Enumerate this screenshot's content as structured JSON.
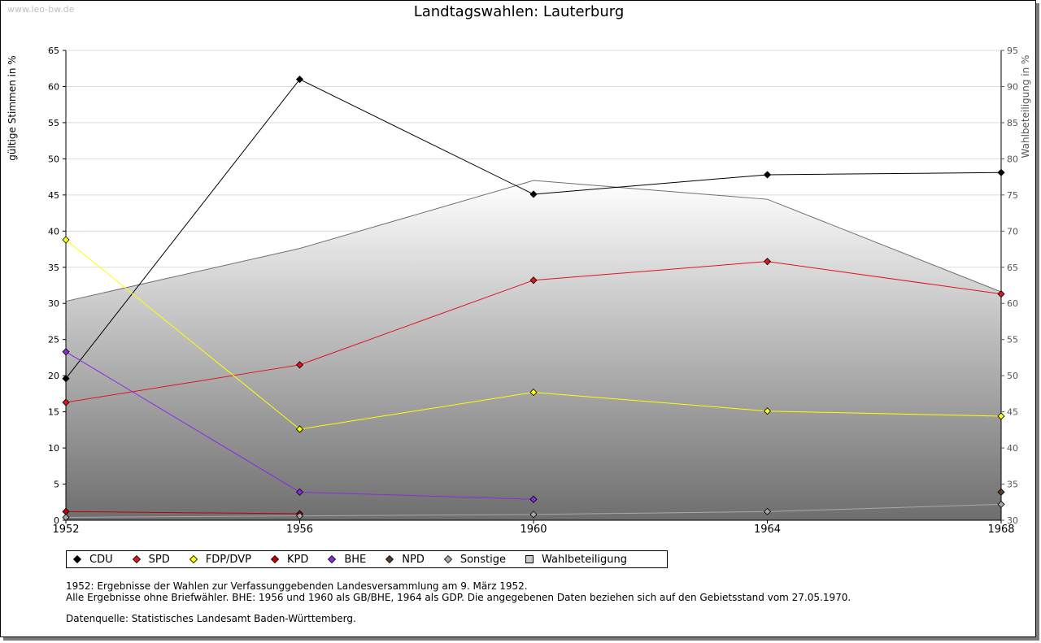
{
  "watermark": "www.leo-bw.de",
  "colors": {
    "CDU": "#000000",
    "SPD": "#e0141c",
    "FDP/DVP": "#ffff00",
    "KPD": "#c00000",
    "BHE": "#8a2be2",
    "NPD": "#5a3a2a",
    "Sonstige": "#a8a8a8",
    "Wahlbeteiligung": "#c8c8c8"
  },
  "chart_data": {
    "type": "line",
    "title": "Landtagswahlen: Lauterburg",
    "ylabel": "gültige Stimmen in %",
    "y2label": "Wahlbeteiligung in %",
    "ylim": [
      0,
      65
    ],
    "y2lim": [
      30,
      95
    ],
    "yticks": [
      0,
      5,
      10,
      15,
      20,
      25,
      30,
      35,
      40,
      45,
      50,
      55,
      60,
      65
    ],
    "y2ticks": [
      30,
      35,
      40,
      45,
      50,
      55,
      60,
      65,
      70,
      75,
      80,
      85,
      90,
      95
    ],
    "x": [
      1952,
      1956,
      1960,
      1964,
      1968
    ],
    "grid": true,
    "legend_position": "bottom",
    "series": [
      {
        "name": "CDU",
        "values": [
          19.6,
          61.0,
          45.1,
          47.8,
          48.1
        ]
      },
      {
        "name": "SPD",
        "values": [
          16.3,
          21.5,
          33.2,
          35.8,
          31.3
        ]
      },
      {
        "name": "FDP/DVP",
        "values": [
          38.8,
          12.6,
          17.7,
          15.1,
          14.4
        ]
      },
      {
        "name": "KPD",
        "values": [
          1.2,
          0.9,
          null,
          null,
          null
        ]
      },
      {
        "name": "BHE",
        "values": [
          23.3,
          3.9,
          2.9,
          null,
          null
        ]
      },
      {
        "name": "NPD",
        "values": [
          null,
          null,
          null,
          null,
          3.9
        ]
      },
      {
        "name": "Sonstige",
        "values": [
          0.4,
          0.6,
          0.8,
          1.2,
          2.2
        ]
      },
      {
        "name": "Wahlbeteiligung",
        "type": "area",
        "axis": "right",
        "values": [
          60.3,
          67.6,
          77.0,
          74.4,
          61.6
        ]
      }
    ]
  },
  "notes": {
    "line1": "1952: Ergebnisse der Wahlen zur Verfassunggebenden Landesversammlung am 9. März 1952.",
    "line2": "Alle Ergebnisse ohne Briefwähler. BHE: 1956 und 1960 als GB/BHE, 1964 als GDP. Die angegebenen Daten beziehen sich auf den Gebietsstand vom 27.05.1970.",
    "source": "Datenquelle: Statistisches Landesamt Baden-Württemberg."
  }
}
